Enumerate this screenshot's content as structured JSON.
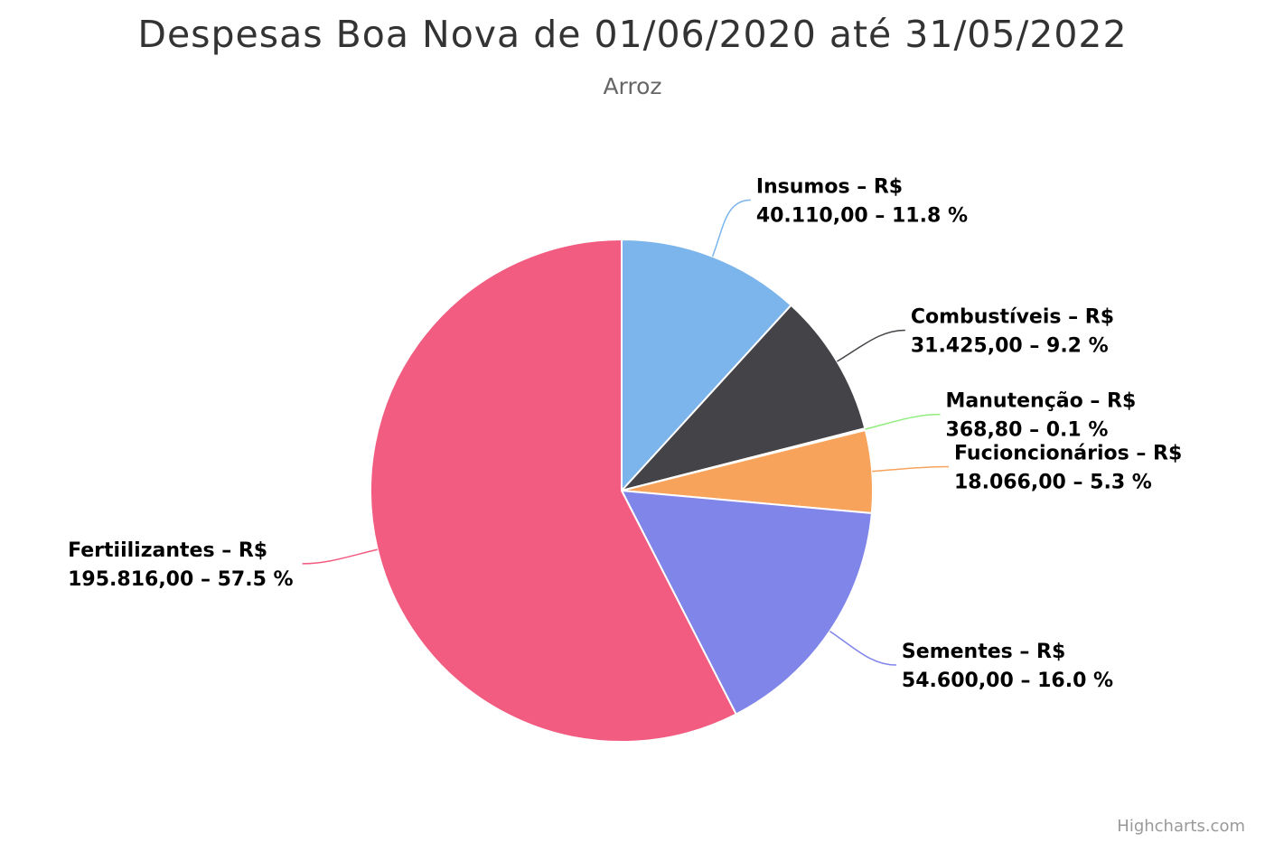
{
  "chart_data": {
    "type": "pie",
    "title": "Despesas Boa Nova de 01/06/2020 até 31/05/2022",
    "subtitle": "Arroz",
    "currency_prefix": "R$",
    "slices": [
      {
        "name": "Insumos",
        "value_label": "40.110,00",
        "value": 40110.0,
        "percent": 11.8,
        "color": "#7cb5ec"
      },
      {
        "name": "Combustíveis",
        "value_label": "31.425,00",
        "value": 31425.0,
        "percent": 9.2,
        "color": "#434348"
      },
      {
        "name": "Manutenção",
        "value_label": "368,80",
        "value": 368.8,
        "percent": 0.1,
        "color": "#90ed7d"
      },
      {
        "name": "Fucioncionários",
        "value_label": "18.066,00",
        "value": 18066.0,
        "percent": 5.3,
        "color": "#f7a35c"
      },
      {
        "name": "Sementes",
        "value_label": "54.600,00",
        "value": 54600.0,
        "percent": 16.0,
        "color": "#8085e9"
      },
      {
        "name": "Fertiilizantes",
        "value_label": "195.816,00",
        "value": 195816.0,
        "percent": 57.5,
        "color": "#f15c80"
      }
    ]
  },
  "credits": "Highcharts.com"
}
